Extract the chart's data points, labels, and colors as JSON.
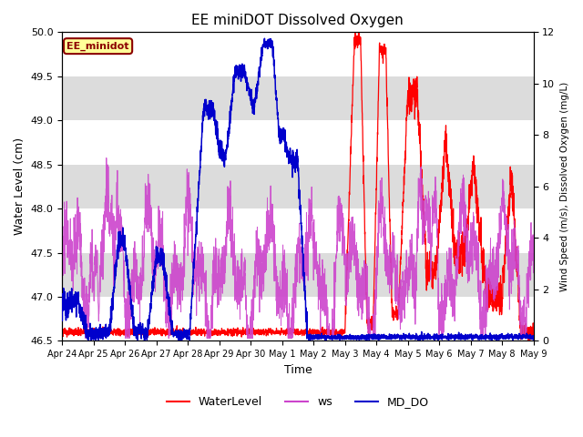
{
  "title": "EE miniDOT Dissolved Oxygen",
  "xlabel": "Time",
  "ylabel_left": "Water Level (cm)",
  "ylabel_right": "Wind Speed (m/s), Dissolved Oxygen (mg/L)",
  "ylim_left": [
    46.5,
    50.0
  ],
  "ylim_right": [
    0,
    12
  ],
  "annotation_text": "EE_minidot",
  "annotation_color": "#8B0000",
  "annotation_bg": "#FFFF99",
  "bg_band_color": "#DCDCDC",
  "xtick_labels": [
    "Apr 24",
    "Apr 25",
    "Apr 26",
    "Apr 27",
    "Apr 28",
    "Apr 29",
    "Apr 30",
    "May 1",
    "May 2",
    "May 3",
    "May 4",
    "May 5",
    "May 6",
    "May 7",
    "May 8",
    "May 9"
  ],
  "wl_color": "#FF0000",
  "ws_color": "#CC44CC",
  "do_color": "#0000CC",
  "legend_items": [
    "WaterLevel",
    "ws",
    "MD_DO"
  ]
}
